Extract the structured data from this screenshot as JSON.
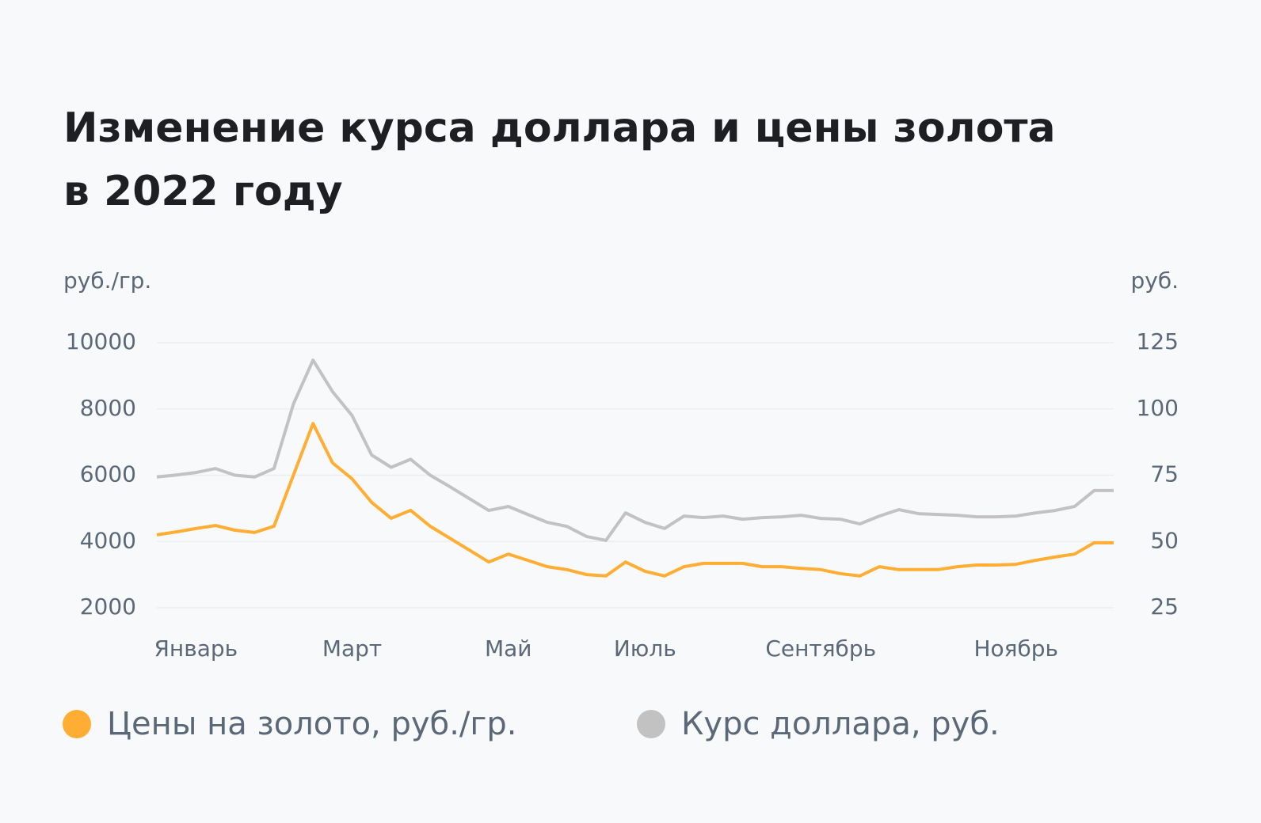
{
  "chart_data": {
    "type": "line",
    "title": "Изменение курса доллара и цены золота",
    "subtitle": "в 2022 году",
    "y_label": "руб./гр.",
    "y2_label": "руб.",
    "categories": [
      null,
      null,
      "Январь",
      null,
      null,
      null,
      null,
      null,
      null,
      null,
      "Март",
      null,
      null,
      null,
      null,
      null,
      null,
      null,
      "Май",
      null,
      null,
      null,
      null,
      null,
      null,
      "Июль",
      null,
      null,
      null,
      null,
      null,
      null,
      null,
      null,
      "Сентябрь",
      null,
      null,
      null,
      null,
      null,
      null,
      null,
      null,
      null,
      "Ноябрь",
      null,
      null,
      null,
      null,
      null
    ],
    "series": [
      {
        "name": "Цены на золото, руб./гр.",
        "color": "#ffad33",
        "values": [
          4200,
          4290,
          4390,
          4480,
          4340,
          4270,
          4460,
          6010,
          7560,
          6370,
          5890,
          5180,
          4700,
          4940,
          4460,
          4100,
          3740,
          3380,
          3620,
          3430,
          3240,
          3150,
          3000,
          2960,
          3380,
          3100,
          2960,
          3240,
          3340,
          3340,
          3340,
          3240,
          3240,
          3190,
          3150,
          3030,
          2960,
          3240,
          3150,
          3150,
          3150,
          3240,
          3290,
          3290,
          3310,
          3430,
          3530,
          3620,
          3960,
          3960
        ]
      },
      {
        "name": "Курс доллара, руб.",
        "color": "#c2c2c2",
        "axis": "y2",
        "values": [
          74.3,
          75.1,
          76,
          77.5,
          75,
          74.3,
          77.5,
          102,
          118.4,
          106.5,
          97.5,
          82.6,
          78,
          81,
          75,
          70.7,
          66.2,
          61.7,
          63.2,
          60.2,
          57.2,
          55.7,
          51.9,
          50.4,
          60.8,
          57.2,
          54.9,
          59.6,
          59,
          59.6,
          58.4,
          59,
          59.3,
          59.9,
          58.7,
          58.4,
          56.6,
          59.6,
          62,
          60.5,
          60.2,
          59.9,
          59.3,
          59.3,
          59.6,
          60.8,
          61.7,
          63.2,
          69.2,
          69.2
        ]
      }
    ],
    "ylim": [
      2000,
      10000
    ],
    "yticks": [
      2000,
      4000,
      6000,
      8000,
      10000
    ],
    "y2lim": [
      25,
      125
    ],
    "y2ticks": [
      25,
      50,
      75,
      100,
      125
    ],
    "grid": true
  }
}
